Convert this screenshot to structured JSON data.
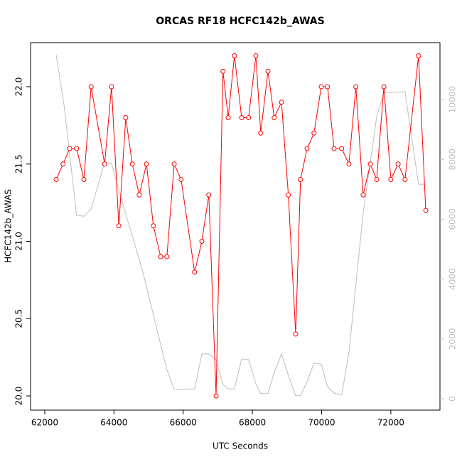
{
  "chart_data": {
    "type": "line",
    "title": "ORCAS RF18 HCFC142b_AWAS",
    "xlabel": "UTC Seconds",
    "ylabel": "HCFC142b_AWAS",
    "xlim": [
      61590,
      73420
    ],
    "xticks": [
      62000,
      64000,
      66000,
      68000,
      70000,
      72000
    ],
    "ylim": [
      19.908,
      22.285
    ],
    "yticks": [
      {
        "value": 20,
        "label": "20.0"
      },
      20.5,
      {
        "value": 21,
        "label": "21.0"
      },
      21.5,
      {
        "value": 22,
        "label": "22.0"
      }
    ],
    "y2lim": [
      -380,
      11900
    ],
    "y2ticks": [
      0,
      2000,
      4000,
      6000,
      8000,
      10000
    ],
    "series": [
      {
        "color": "#bebebe",
        "axis": "y2",
        "markers": false,
        "x": [
          62330,
          62550,
          62920,
          63130,
          63340,
          63730,
          63930,
          64140,
          64820,
          65530,
          65740,
          66330,
          66540,
          66740,
          66950,
          67150,
          67300,
          67480,
          67690,
          67890,
          68100,
          68240,
          68450,
          68630,
          68840,
          69040,
          69250,
          69390,
          69580,
          69780,
          69990,
          70170,
          70360,
          70580,
          70790,
          70990,
          71200,
          71590,
          71800,
          72000,
          72410,
          72800,
          73010
        ],
        "values": [
          11500,
          9880,
          6130,
          6100,
          6340,
          7890,
          7860,
          6960,
          4300,
          970,
          310,
          330,
          1500,
          1500,
          1310,
          480,
          330,
          330,
          1330,
          1310,
          500,
          170,
          170,
          880,
          1500,
          780,
          100,
          100,
          570,
          1190,
          1160,
          400,
          190,
          120,
          1540,
          3820,
          6200,
          9410,
          10240,
          10240,
          10260,
          7170,
          7170
        ]
      },
      {
        "color": "#ff0000",
        "axis": "y",
        "markers": true,
        "x": [
          62330,
          62530,
          62720,
          62920,
          63130,
          63340,
          63730,
          63930,
          64140,
          64340,
          64530,
          64730,
          64940,
          65140,
          65350,
          65530,
          65740,
          65940,
          66330,
          66540,
          66740,
          66950,
          67150,
          67300,
          67480,
          67690,
          67890,
          68100,
          68240,
          68450,
          68630,
          68840,
          69040,
          69250,
          69390,
          69580,
          69780,
          69990,
          70170,
          70360,
          70580,
          70790,
          70990,
          71200,
          71410,
          71590,
          71800,
          72000,
          72210,
          72410,
          72800,
          73010
        ],
        "values": [
          21.4,
          21.5,
          21.6,
          21.6,
          21.4,
          22.0,
          21.5,
          22.0,
          21.1,
          21.8,
          21.5,
          21.3,
          21.5,
          21.1,
          20.9,
          20.9,
          21.5,
          21.4,
          20.8,
          21.0,
          21.3,
          20.0,
          22.1,
          21.8,
          22.2,
          21.8,
          21.8,
          22.2,
          21.7,
          22.1,
          21.8,
          21.9,
          21.3,
          20.4,
          21.4,
          21.6,
          21.7,
          22.0,
          22.0,
          21.6,
          21.6,
          21.5,
          22.0,
          21.3,
          21.5,
          21.4,
          22.0,
          21.4,
          21.5,
          21.4,
          22.2,
          21.2
        ]
      }
    ]
  }
}
